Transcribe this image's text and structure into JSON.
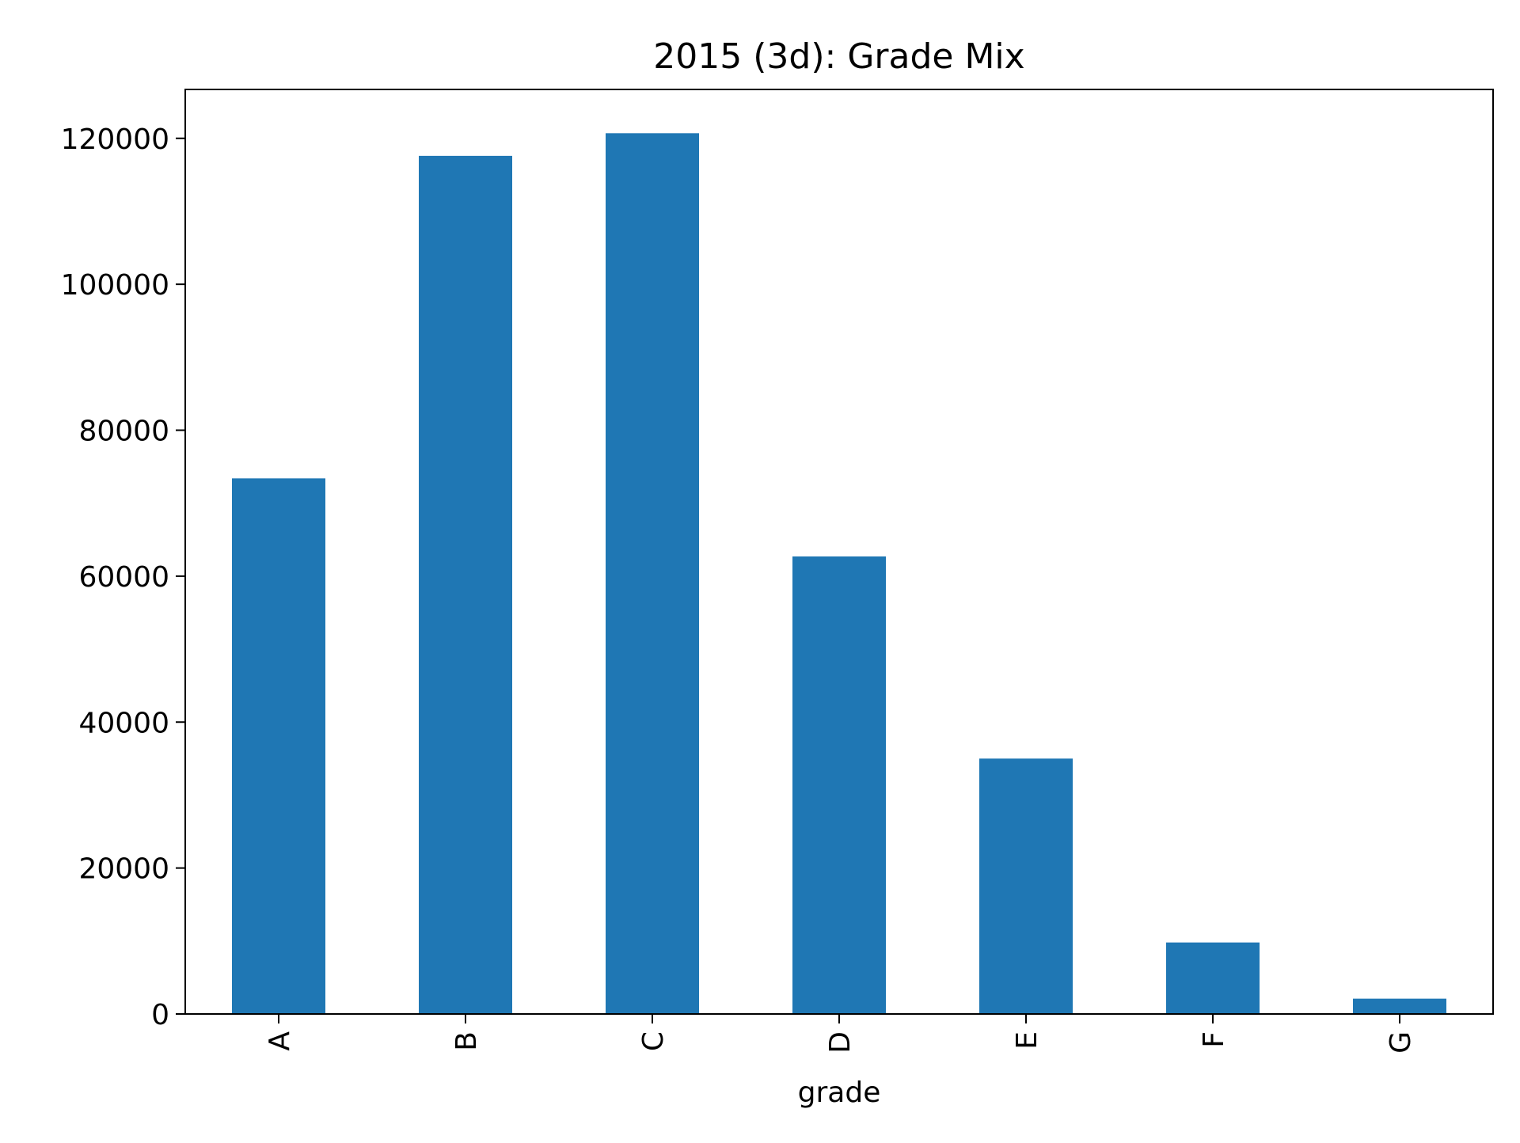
{
  "chart_data": {
    "type": "bar",
    "title": "2015 (3d): Grade Mix",
    "xlabel": "grade",
    "ylabel": "",
    "categories": [
      "A",
      "B",
      "C",
      "D",
      "E",
      "F",
      "G"
    ],
    "series": [
      {
        "values": [
          73400,
          117600,
          120700,
          62700,
          35000,
          9800,
          2100
        ]
      }
    ],
    "ylim": [
      0,
      126700
    ],
    "yticks": [
      0,
      20000,
      40000,
      60000,
      80000,
      100000,
      120000
    ],
    "ytick_labels": [
      "0",
      "20000",
      "40000",
      "60000",
      "80000",
      "100000",
      "120000"
    ],
    "grid": false,
    "legend": "none",
    "colors": {
      "bar": "#1f77b4",
      "axes": "#000000",
      "background": "#ffffff"
    }
  }
}
